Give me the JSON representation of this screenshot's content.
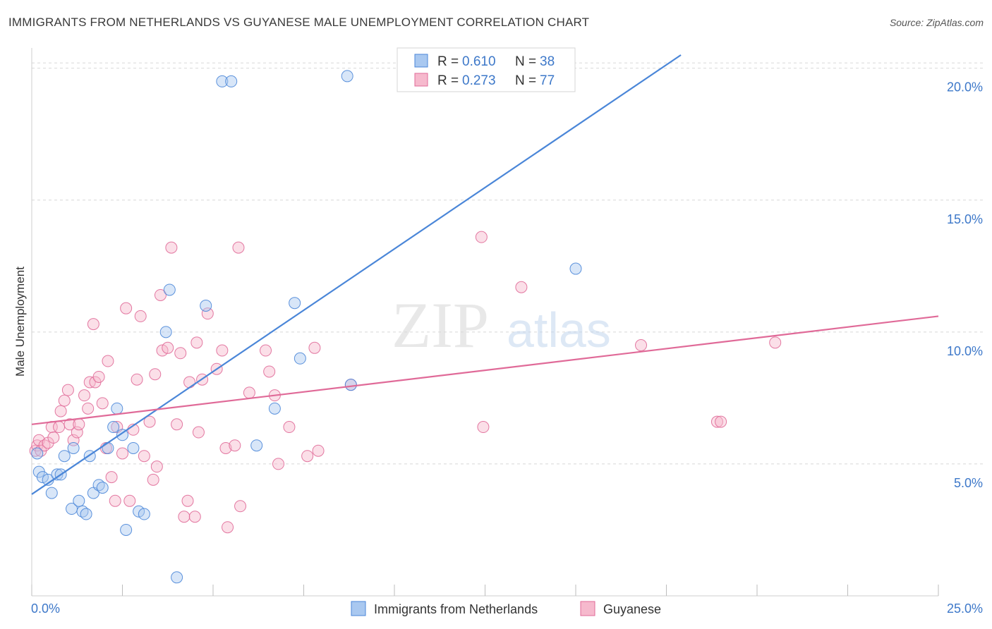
{
  "title": "IMMIGRANTS FROM NETHERLANDS VS GUYANESE MALE UNEMPLOYMENT CORRELATION CHART",
  "source": "Source: ZipAtlas.com",
  "watermark": {
    "zip": "ZIP",
    "atlas": "atlas"
  },
  "colors": {
    "blue": "#4a86d8",
    "blue_fill": "#a9c8f0",
    "pink": "#e06a98",
    "pink_fill": "#f6b9cd",
    "axis_text": "#3d78c9",
    "grid": "#d8d8d8"
  },
  "legend": {
    "rows": [
      {
        "r_label": "R = ",
        "r_value": "0.610",
        "n_label": "N = ",
        "n_value": "38"
      },
      {
        "r_label": "R = ",
        "r_value": "0.273",
        "n_label": "N = ",
        "n_value": "77"
      }
    ]
  },
  "chart_data": {
    "type": "scatter",
    "title": "IMMIGRANTS FROM NETHERLANDS VS GUYANESE MALE UNEMPLOYMENT CORRELATION CHART",
    "xlabel": "",
    "ylabel": "Male Unemployment",
    "xlim": [
      0,
      25
    ],
    "ylim": [
      0,
      20.5
    ],
    "x_tick_labels": [
      "0.0%",
      "25.0%"
    ],
    "y_ticks": [
      5,
      10,
      15,
      20
    ],
    "y_tick_labels": [
      "5.0%",
      "10.0%",
      "15.0%",
      "20.0%"
    ],
    "grid": true,
    "legend_position": "top-center",
    "bottom_legend": [
      "Immigrants from Netherlands",
      "Guyanese"
    ],
    "series": [
      {
        "name": "Immigrants from Netherlands",
        "color": "#4a86d8",
        "r": 0.61,
        "n": 38,
        "trend": {
          "x": [
            0,
            17.9
          ],
          "y": [
            3.85,
            20.5
          ]
        },
        "points": [
          [
            0.15,
            5.4
          ],
          [
            0.2,
            4.7
          ],
          [
            0.3,
            4.5
          ],
          [
            0.45,
            4.4
          ],
          [
            0.55,
            3.9
          ],
          [
            0.7,
            4.6
          ],
          [
            0.8,
            4.6
          ],
          [
            0.9,
            5.3
          ],
          [
            1.1,
            3.3
          ],
          [
            1.15,
            5.6
          ],
          [
            1.3,
            3.6
          ],
          [
            1.4,
            3.2
          ],
          [
            1.5,
            3.1
          ],
          [
            1.6,
            5.3
          ],
          [
            1.7,
            3.9
          ],
          [
            1.85,
            4.2
          ],
          [
            1.95,
            4.1
          ],
          [
            2.1,
            5.6
          ],
          [
            2.25,
            6.4
          ],
          [
            2.35,
            7.1
          ],
          [
            2.5,
            6.1
          ],
          [
            2.6,
            2.5
          ],
          [
            2.8,
            5.6
          ],
          [
            2.95,
            3.2
          ],
          [
            3.1,
            3.1
          ],
          [
            3.7,
            10.0
          ],
          [
            3.8,
            11.6
          ],
          [
            4.0,
            0.7
          ],
          [
            4.8,
            11.0
          ],
          [
            5.25,
            19.5
          ],
          [
            5.5,
            19.5
          ],
          [
            6.2,
            5.7
          ],
          [
            6.7,
            7.1
          ],
          [
            7.25,
            11.1
          ],
          [
            7.4,
            9.0
          ],
          [
            8.8,
            8.0
          ],
          [
            8.7,
            19.7
          ],
          [
            15.0,
            12.4
          ]
        ]
      },
      {
        "name": "Guyanese",
        "color": "#e06a98",
        "r": 0.273,
        "n": 77,
        "trend": {
          "x": [
            0,
            25
          ],
          "y": [
            6.5,
            10.6
          ]
        },
        "points": [
          [
            0.1,
            5.5
          ],
          [
            0.15,
            5.7
          ],
          [
            0.2,
            5.9
          ],
          [
            0.25,
            5.5
          ],
          [
            0.35,
            5.7
          ],
          [
            0.45,
            5.8
          ],
          [
            0.55,
            6.4
          ],
          [
            0.6,
            6.0
          ],
          [
            0.75,
            6.4
          ],
          [
            0.8,
            7.0
          ],
          [
            0.9,
            7.4
          ],
          [
            1.0,
            7.8
          ],
          [
            1.05,
            6.5
          ],
          [
            1.15,
            5.9
          ],
          [
            1.25,
            6.2
          ],
          [
            1.3,
            6.5
          ],
          [
            1.45,
            7.6
          ],
          [
            1.55,
            7.1
          ],
          [
            1.6,
            8.1
          ],
          [
            1.7,
            10.3
          ],
          [
            1.75,
            8.1
          ],
          [
            1.85,
            8.3
          ],
          [
            1.95,
            7.3
          ],
          [
            2.1,
            8.9
          ],
          [
            2.05,
            5.6
          ],
          [
            2.2,
            4.5
          ],
          [
            2.3,
            3.6
          ],
          [
            2.35,
            6.4
          ],
          [
            2.5,
            5.4
          ],
          [
            2.6,
            10.9
          ],
          [
            2.7,
            3.6
          ],
          [
            2.8,
            6.3
          ],
          [
            2.9,
            8.2
          ],
          [
            3.0,
            10.6
          ],
          [
            3.1,
            5.3
          ],
          [
            3.25,
            6.6
          ],
          [
            3.35,
            4.4
          ],
          [
            3.4,
            8.4
          ],
          [
            3.45,
            4.9
          ],
          [
            3.55,
            11.4
          ],
          [
            3.6,
            9.3
          ],
          [
            3.75,
            9.4
          ],
          [
            3.85,
            13.2
          ],
          [
            4.0,
            6.5
          ],
          [
            4.1,
            9.2
          ],
          [
            4.2,
            3.0
          ],
          [
            4.3,
            3.6
          ],
          [
            4.35,
            8.1
          ],
          [
            4.5,
            3.0
          ],
          [
            4.55,
            9.6
          ],
          [
            4.6,
            6.2
          ],
          [
            4.7,
            8.2
          ],
          [
            4.85,
            10.7
          ],
          [
            5.1,
            8.6
          ],
          [
            5.25,
            9.3
          ],
          [
            5.35,
            5.6
          ],
          [
            5.4,
            2.6
          ],
          [
            5.6,
            5.7
          ],
          [
            5.7,
            13.2
          ],
          [
            5.75,
            3.4
          ],
          [
            6.0,
            7.7
          ],
          [
            6.45,
            9.3
          ],
          [
            6.55,
            8.5
          ],
          [
            6.7,
            7.6
          ],
          [
            6.8,
            5.0
          ],
          [
            7.1,
            6.4
          ],
          [
            7.6,
            5.3
          ],
          [
            7.8,
            9.4
          ],
          [
            7.9,
            5.5
          ],
          [
            8.8,
            8.0
          ],
          [
            12.4,
            13.6
          ],
          [
            12.45,
            6.4
          ],
          [
            13.5,
            11.7
          ],
          [
            16.8,
            9.5
          ],
          [
            18.9,
            6.6
          ],
          [
            20.5,
            9.6
          ],
          [
            19.0,
            6.6
          ]
        ]
      }
    ]
  }
}
